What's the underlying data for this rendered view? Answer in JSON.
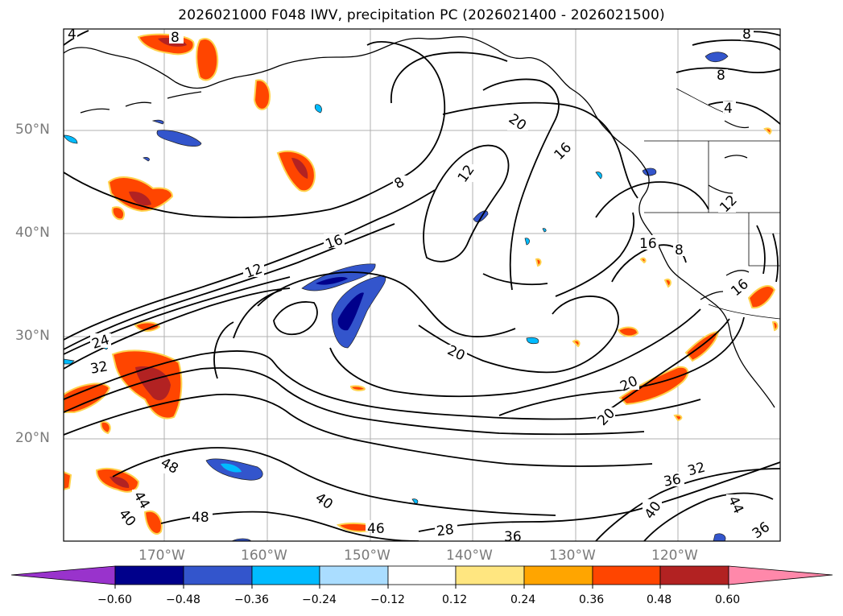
{
  "title": "2026021000 F048 IWV, precipitation PC (2026021400 - 2026021500)",
  "map": {
    "lat_labels": [
      "50°N",
      "40°N",
      "30°N",
      "20°N"
    ],
    "lon_labels": [
      "170°W",
      "160°W",
      "150°W",
      "140°W",
      "130°W",
      "120°W"
    ],
    "iwv_contour_labels": [
      "8",
      "8",
      "8",
      "4",
      "4",
      "20",
      "16",
      "12",
      "8",
      "16",
      "12",
      "24",
      "32",
      "20",
      "20",
      "20",
      "16",
      "8",
      "12",
      "16",
      "48",
      "44",
      "40",
      "48",
      "40",
      "46",
      "28",
      "36",
      "32",
      "36",
      "40",
      "44",
      "36"
    ]
  },
  "colorbar": {
    "ticks": [
      "−0.60",
      "−0.48",
      "−0.36",
      "−0.24",
      "−0.12",
      "0.12",
      "0.24",
      "0.36",
      "0.48",
      "0.60"
    ],
    "colors": [
      "#9933cc",
      "#00008b",
      "#3355cc",
      "#00bbff",
      "#aaddff",
      "#ffffff",
      "#ffe680",
      "#ffa500",
      "#ff4500",
      "#b22222",
      "#ff88aa"
    ]
  }
}
